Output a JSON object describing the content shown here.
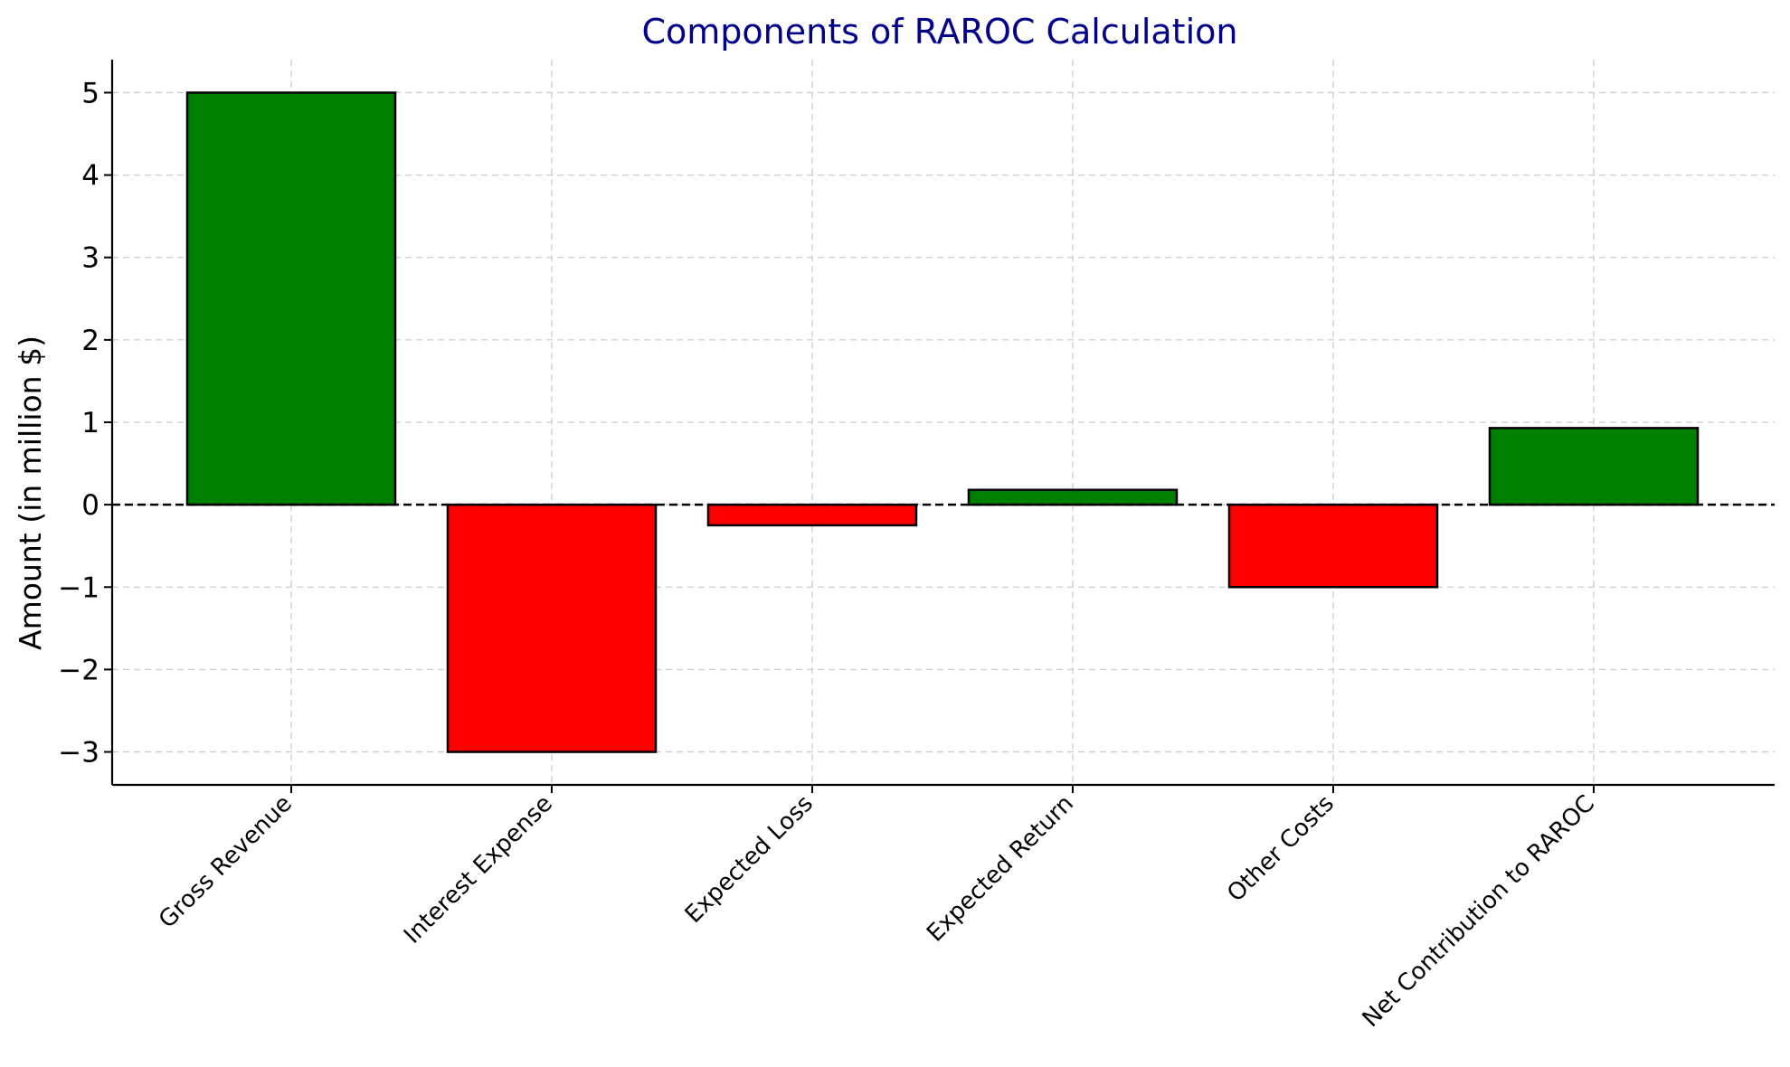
{
  "chart_data": {
    "type": "bar",
    "title": "Components of RAROC Calculation",
    "xlabel": "",
    "ylabel": "Amount (in million $)",
    "categories": [
      "Gross Revenue",
      "Interest Expense",
      "Expected Loss",
      "Expected Return",
      "Other Costs",
      "Net Contribution to RAROC"
    ],
    "values": [
      5,
      -3,
      -0.25,
      0.18,
      -1,
      0.93
    ],
    "colors": [
      "#008000",
      "#ff0000",
      "#ff0000",
      "#008000",
      "#ff0000",
      "#008000"
    ],
    "positive_color": "#008000",
    "negative_color": "#ff0000",
    "title_color": "#00008b",
    "ylim": [
      -3.4,
      5.4
    ],
    "yticks": [
      -3,
      -2,
      -1,
      0,
      1,
      2,
      3,
      4,
      5
    ],
    "ytick_labels": [
      "−3",
      "−2",
      "−1",
      "0",
      "1",
      "2",
      "3",
      "4",
      "5"
    ],
    "grid": true,
    "zero_line": "dashed black"
  }
}
